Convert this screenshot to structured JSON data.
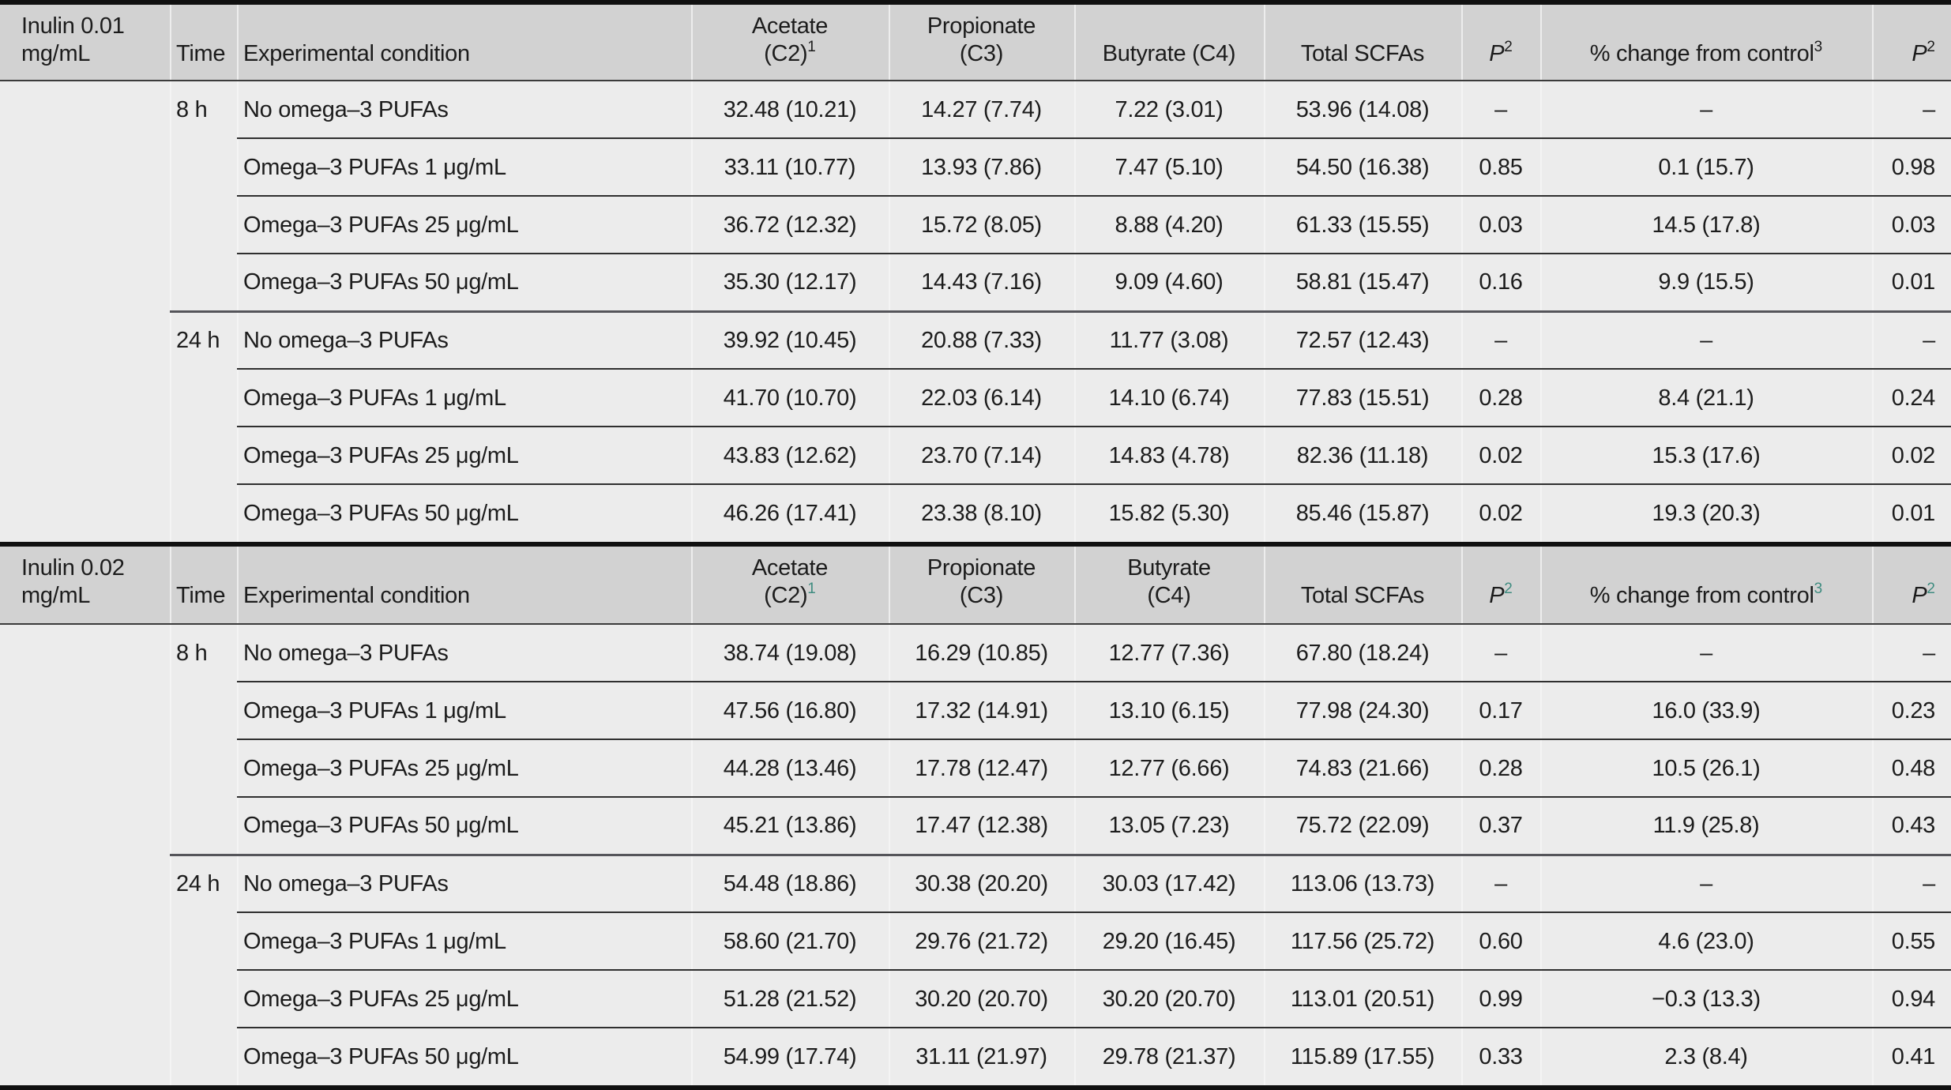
{
  "colors": {
    "header_bg": "#d2d2d2",
    "body_bg": "#ececec",
    "text": "#1c1c1c",
    "footnote_superscript_teal": "#3f8c80",
    "rule_black": "#101010",
    "rule_row": "#2f2f2f",
    "rule_group": "#55555a"
  },
  "sections": [
    {
      "label": "Inulin 0.01 mg/mL",
      "time_label": "Time",
      "condition_label": "Experimental condition",
      "footnote_sup_teal": false,
      "columns": [
        {
          "id": "acetate",
          "lines": [
            "Acetate",
            "(C2)"
          ],
          "sup": "1"
        },
        {
          "id": "propionate",
          "lines": [
            "Propionate",
            "(C3)"
          ]
        },
        {
          "id": "butyrate",
          "lines": [
            "Butyrate (C4)"
          ]
        },
        {
          "id": "total-scfas",
          "lines": [
            "Total SCFAs"
          ]
        },
        {
          "id": "p-left",
          "lines": [
            "P"
          ],
          "sup": "2",
          "italic": true
        },
        {
          "id": "pct-change",
          "lines": [
            "% change from control"
          ],
          "sup": "3"
        },
        {
          "id": "p-right",
          "lines": [
            "P"
          ],
          "sup": "2",
          "italic": true
        }
      ],
      "groups": [
        {
          "time": "8 h",
          "rows": [
            [
              "No omega–3 PUFAs",
              "32.48 (10.21)",
              "14.27 (7.74)",
              "7.22 (3.01)",
              "53.96 (14.08)",
              "–",
              "–",
              "–"
            ],
            [
              "Omega–3 PUFAs 1 μg/mL",
              "33.11 (10.77)",
              "13.93 (7.86)",
              "7.47 (5.10)",
              "54.50 (16.38)",
              "0.85",
              "0.1 (15.7)",
              "0.98"
            ],
            [
              "Omega–3 PUFAs 25 μg/mL",
              "36.72 (12.32)",
              "15.72 (8.05)",
              "8.88 (4.20)",
              "61.33 (15.55)",
              "0.03",
              "14.5 (17.8)",
              "0.03"
            ],
            [
              "Omega–3 PUFAs 50 μg/mL",
              "35.30 (12.17)",
              "14.43 (7.16)",
              "9.09 (4.60)",
              "58.81 (15.47)",
              "0.16",
              "9.9 (15.5)",
              "0.01"
            ]
          ]
        },
        {
          "time": "24 h",
          "rows": [
            [
              "No omega–3 PUFAs",
              "39.92 (10.45)",
              "20.88 (7.33)",
              "11.77 (3.08)",
              "72.57 (12.43)",
              "–",
              "–",
              "–"
            ],
            [
              "Omega–3 PUFAs 1 μg/mL",
              "41.70 (10.70)",
              "22.03 (6.14)",
              "14.10 (6.74)",
              "77.83 (15.51)",
              "0.28",
              "8.4 (21.1)",
              "0.24"
            ],
            [
              "Omega–3 PUFAs 25 μg/mL",
              "43.83 (12.62)",
              "23.70 (7.14)",
              "14.83 (4.78)",
              "82.36 (11.18)",
              "0.02",
              "15.3 (17.6)",
              "0.02"
            ],
            [
              "Omega–3 PUFAs 50 μg/mL",
              "46.26 (17.41)",
              "23.38 (8.10)",
              "15.82 (5.30)",
              "85.46 (15.87)",
              "0.02",
              "19.3 (20.3)",
              "0.01"
            ]
          ]
        }
      ]
    },
    {
      "label": "Inulin 0.02 mg/mL",
      "time_label": "Time",
      "condition_label": "Experimental condition",
      "footnote_sup_teal": true,
      "columns": [
        {
          "id": "acetate",
          "lines": [
            "Acetate",
            "(C2)"
          ],
          "sup": "1"
        },
        {
          "id": "propionate",
          "lines": [
            "Propionate",
            "(C3)"
          ]
        },
        {
          "id": "butyrate",
          "lines": [
            "Butyrate",
            "(C4)"
          ]
        },
        {
          "id": "total-scfas",
          "lines": [
            "Total SCFAs"
          ]
        },
        {
          "id": "p-left",
          "lines": [
            "P"
          ],
          "sup": "2",
          "italic": true
        },
        {
          "id": "pct-change",
          "lines": [
            "% change from control"
          ],
          "sup": "3"
        },
        {
          "id": "p-right",
          "lines": [
            "P"
          ],
          "sup": "2",
          "italic": true
        }
      ],
      "groups": [
        {
          "time": "8 h",
          "rows": [
            [
              "No omega–3 PUFAs",
              "38.74 (19.08)",
              "16.29 (10.85)",
              "12.77 (7.36)",
              "67.80 (18.24)",
              "–",
              "–",
              "–"
            ],
            [
              "Omega–3 PUFAs 1 μg/mL",
              "47.56 (16.80)",
              "17.32 (14.91)",
              "13.10 (6.15)",
              "77.98 (24.30)",
              "0.17",
              "16.0 (33.9)",
              "0.23"
            ],
            [
              "Omega–3 PUFAs 25 μg/mL",
              "44.28 (13.46)",
              "17.78 (12.47)",
              "12.77 (6.66)",
              "74.83 (21.66)",
              "0.28",
              "10.5 (26.1)",
              "0.48"
            ],
            [
              "Omega–3 PUFAs 50 μg/mL",
              "45.21 (13.86)",
              "17.47 (12.38)",
              "13.05 (7.23)",
              "75.72 (22.09)",
              "0.37",
              "11.9 (25.8)",
              "0.43"
            ]
          ]
        },
        {
          "time": "24 h",
          "rows": [
            [
              "No omega–3 PUFAs",
              "54.48 (18.86)",
              "30.38 (20.20)",
              "30.03 (17.42)",
              "113.06 (13.73)",
              "–",
              "–",
              "–"
            ],
            [
              "Omega–3 PUFAs 1 μg/mL",
              "58.60 (21.70)",
              "29.76 (21.72)",
              "29.20 (16.45)",
              "117.56 (25.72)",
              "0.60",
              "4.6 (23.0)",
              "0.55"
            ],
            [
              "Omega–3 PUFAs 25 μg/mL",
              "51.28 (21.52)",
              "30.20 (20.70)",
              "30.20 (20.70)",
              "113.01 (20.51)",
              "0.99",
              "−0.3 (13.3)",
              "0.94"
            ],
            [
              "Omega–3 PUFAs 50 μg/mL",
              "54.99 (17.74)",
              "31.11 (21.97)",
              "29.78 (21.37)",
              "115.89 (17.55)",
              "0.33",
              "2.3 (8.4)",
              "0.41"
            ]
          ]
        }
      ]
    }
  ]
}
